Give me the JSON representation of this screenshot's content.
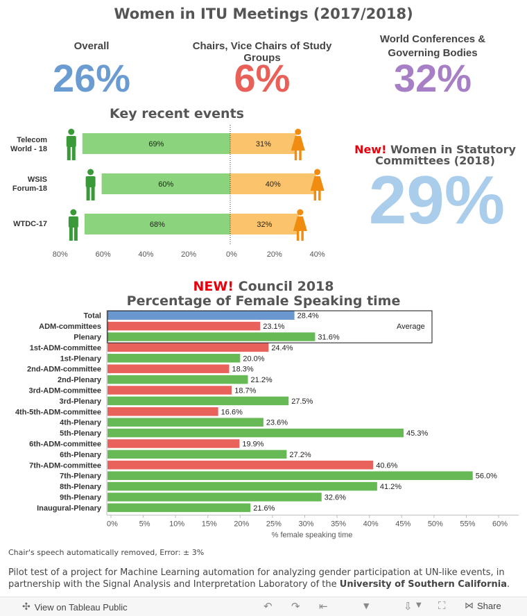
{
  "title": "Women in ITU Meetings (2017/2018)",
  "kpis": [
    {
      "label": "Overall",
      "value": "26%",
      "color": "#6a9bd1"
    },
    {
      "label": "Chairs, Vice Chairs of Study Groups",
      "value": "6%",
      "color": "#e86058"
    },
    {
      "label": "World Conferences & Governing Bodies",
      "value": "32%",
      "color": "#a77fc6"
    }
  ],
  "events_title": "Key recent events",
  "statutory": {
    "new_word": "New!",
    "rest": "Women in Statutory Committees (2018)",
    "value": "29%",
    "color": "#a9cdea"
  },
  "council_title": {
    "new_word": "NEW!",
    "rest": "Council 2018",
    "line2": "Percentage of Female Speaking time"
  },
  "footer": {
    "note": "Chair's speech automatically removed, Error: ± 3%",
    "text_pre": "Pilot test of a project for Machine Learning automation for analyzing gender participation at UN-like events, in partnership with the Signal Analysis and Interpretation Laboratory of the ",
    "text_bold": "University of Southern California",
    "text_post": "."
  },
  "toolbar": {
    "view_label": "View on Tableau Public",
    "share_label": "Share"
  },
  "colors": {
    "green": "#8cd37e",
    "orange": "#fbc46c",
    "male_icon": "#3a9a3a",
    "female_icon": "#f08c10",
    "bar_blue": "#6b97cf",
    "bar_red": "#e8625b",
    "bar_green": "#66b955",
    "new_red": "#e8000b"
  },
  "chart_data": [
    {
      "type": "bar",
      "title": "Key recent events",
      "categories": [
        "Telecom World - 18",
        "WSIS Forum-18",
        "WTDC-17"
      ],
      "series": [
        {
          "name": "male",
          "values": [
            69,
            60,
            68
          ]
        },
        {
          "name": "female",
          "values": [
            31,
            40,
            32
          ]
        }
      ],
      "x_ticks": [
        "80%",
        "60%",
        "40%",
        "20%",
        "0%",
        "20%",
        "40%"
      ],
      "xlim": [
        -80,
        40
      ]
    },
    {
      "type": "bar",
      "title": "Percentage of Female Speaking time",
      "xlabel": "% female speaking time",
      "xlim": [
        0,
        62
      ],
      "x_ticks": [
        "0%",
        "5%",
        "10%",
        "15%",
        "20%",
        "25%",
        "30%",
        "35%",
        "40%",
        "45%",
        "50%",
        "55%",
        "60%"
      ],
      "annotation": "Average",
      "categories": [
        "Total",
        "ADM-committees",
        "Plenary",
        "1st-ADM-committee",
        "1st-Plenary",
        "2nd-ADM-committee",
        "2nd-Plenary",
        "3rd-ADM-committee",
        "3rd-Plenary",
        "4th-5th-ADM-committee",
        "4th-Plenary",
        "5th-Plenary",
        "6th-ADM-committee",
        "6th-Plenary",
        "7th-ADM-committee",
        "7th-Plenary",
        "8th-Plenary",
        "9th-Plenary",
        "Inaugural-Plenary"
      ],
      "values": [
        28.4,
        23.1,
        31.6,
        24.4,
        20.0,
        18.3,
        21.2,
        18.7,
        27.5,
        16.6,
        23.6,
        45.3,
        19.9,
        27.2,
        40.6,
        56.0,
        41.2,
        32.6,
        21.6
      ],
      "labels": [
        "28.4%",
        "23.1%",
        "31.6%",
        "24.4%",
        "20.0%",
        "18.3%",
        "21.2%",
        "18.7%",
        "27.5%",
        "16.6%",
        "23.6%",
        "45.3%",
        "19.9%",
        "27.2%",
        "40.6%",
        "56.0%",
        "41.2%",
        "32.6%",
        "21.6%"
      ],
      "groups": [
        "total",
        "adm",
        "plenary",
        "adm",
        "plenary",
        "adm",
        "plenary",
        "adm",
        "plenary",
        "adm",
        "plenary",
        "plenary",
        "adm",
        "plenary",
        "adm",
        "plenary",
        "plenary",
        "plenary",
        "plenary"
      ]
    }
  ]
}
